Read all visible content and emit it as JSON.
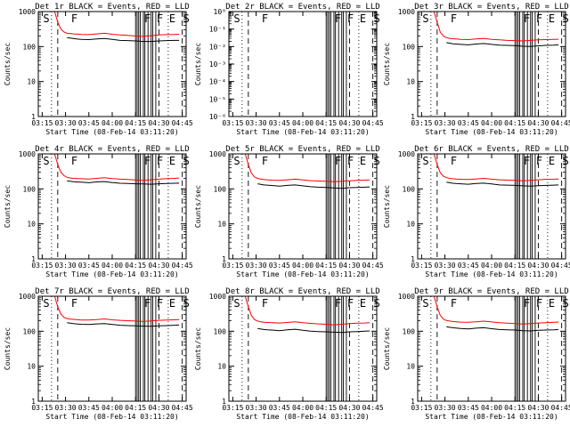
{
  "x_tick_labels": [
    "03:15",
    "03:30",
    "03:45",
    "04:00",
    "04:15",
    "04:30",
    "04:45"
  ],
  "x_tick_values_min": [
    0,
    15,
    30,
    45,
    60,
    75,
    90
  ],
  "xlim_min": [
    -2.5,
    92.5
  ],
  "xlabel": "Start Time (08-Feb-14 03:11:20)",
  "ylabel": "Counts/sec",
  "ylim": [
    1,
    1000
  ],
  "y_tick_labels": [
    "1",
    "10",
    "100",
    "1000"
  ],
  "panel2_ylim": [
    1e-06,
    1
  ],
  "panel2_y_tick_labels": [
    "10⁻⁶",
    "10⁻⁵",
    "10⁻⁴",
    "10⁻³",
    "10⁻²",
    "10⁻¹",
    "10⁰"
  ],
  "marker_labels": [
    {
      "text": "S",
      "x": 0
    },
    {
      "text": "F",
      "x": 18
    },
    {
      "text": "F",
      "x": 65
    },
    {
      "text": "F",
      "x": 73
    },
    {
      "text": "E",
      "x": 81
    },
    {
      "text": "S",
      "x": 90
    }
  ],
  "colors": {
    "events": "#000000",
    "lld": "#ff0000",
    "axes": "#000000"
  },
  "chart_data": [
    {
      "type": "line",
      "title": "Det 1r BLACK = Events, RED = LLD",
      "x": [
        8,
        10,
        12,
        14,
        16,
        18,
        20,
        22,
        25,
        30,
        35,
        40,
        45,
        50,
        55,
        60,
        65,
        70,
        75,
        80,
        85,
        88
      ],
      "series": [
        {
          "name": "LLD",
          "values": [
            1000,
            500,
            320,
            260,
            240,
            235,
            230,
            228,
            222,
            220,
            230,
            240,
            225,
            215,
            210,
            200,
            195,
            205,
            215,
            220,
            222,
            225
          ]
        },
        {
          "name": "Events",
          "values": [
            null,
            null,
            null,
            null,
            180,
            175,
            170,
            165,
            160,
            158,
            165,
            170,
            160,
            150,
            148,
            145,
            140,
            140,
            145,
            148,
            150,
            150
          ]
        }
      ],
      "ylim": [
        1,
        1000
      ]
    },
    {
      "type": "line",
      "title": "Det 2r BLACK = Events, RED = LLD",
      "x": [],
      "series": [],
      "ylim": [
        1e-06,
        1
      ]
    },
    {
      "type": "line",
      "title": "Det 3r BLACK = Events, RED = LLD",
      "x": [
        8,
        10,
        12,
        14,
        16,
        18,
        20,
        22,
        25,
        30,
        35,
        40,
        45,
        50,
        55,
        60,
        65,
        70,
        75,
        80,
        85,
        88
      ],
      "series": [
        {
          "name": "LLD",
          "values": [
            1000,
            500,
            260,
            200,
            180,
            172,
            168,
            165,
            160,
            158,
            165,
            170,
            160,
            155,
            150,
            148,
            145,
            150,
            155,
            158,
            160,
            162
          ]
        },
        {
          "name": "Events",
          "values": [
            null,
            null,
            null,
            null,
            130,
            125,
            120,
            118,
            115,
            112,
            118,
            122,
            115,
            110,
            108,
            106,
            102,
            100,
            105,
            108,
            110,
            112
          ]
        }
      ],
      "ylim": [
        1,
        1000
      ]
    },
    {
      "type": "line",
      "title": "Det 4r BLACK = Events, RED = LLD",
      "x": [
        8,
        10,
        12,
        14,
        16,
        18,
        20,
        22,
        25,
        30,
        35,
        40,
        45,
        50,
        55,
        60,
        65,
        70,
        75,
        80,
        85,
        88
      ],
      "series": [
        {
          "name": "LLD",
          "values": [
            1000,
            500,
            300,
            240,
            215,
            205,
            200,
            198,
            195,
            192,
            200,
            210,
            198,
            190,
            185,
            180,
            175,
            182,
            190,
            196,
            200,
            205
          ]
        },
        {
          "name": "Events",
          "values": [
            null,
            null,
            null,
            null,
            170,
            165,
            160,
            158,
            155,
            150,
            158,
            162,
            152,
            145,
            142,
            140,
            138,
            136,
            140,
            142,
            145,
            146
          ]
        }
      ],
      "ylim": [
        1,
        1000
      ]
    },
    {
      "type": "line",
      "title": "Det 5r BLACK = Events, RED = LLD",
      "x": [
        8,
        10,
        12,
        14,
        16,
        18,
        20,
        22,
        25,
        30,
        35,
        40,
        45,
        50,
        55,
        60,
        65,
        70,
        75,
        80,
        85,
        88
      ],
      "series": [
        {
          "name": "LLD",
          "values": [
            1000,
            500,
            280,
            220,
            200,
            190,
            185,
            182,
            178,
            175,
            182,
            190,
            180,
            172,
            168,
            165,
            160,
            165,
            170,
            175,
            178,
            180
          ]
        },
        {
          "name": "Events",
          "values": [
            null,
            null,
            null,
            null,
            140,
            135,
            130,
            128,
            125,
            120,
            126,
            130,
            122,
            115,
            112,
            110,
            106,
            104,
            108,
            110,
            112,
            114
          ]
        }
      ],
      "ylim": [
        1,
        1000
      ]
    },
    {
      "type": "line",
      "title": "Det 6r BLACK = Events, RED = LLD",
      "x": [
        8,
        10,
        12,
        14,
        16,
        18,
        20,
        22,
        25,
        30,
        35,
        40,
        45,
        50,
        55,
        60,
        65,
        70,
        75,
        80,
        85,
        88
      ],
      "series": [
        {
          "name": "LLD",
          "values": [
            1000,
            500,
            290,
            230,
            210,
            200,
            195,
            192,
            188,
            185,
            192,
            200,
            190,
            182,
            178,
            175,
            170,
            176,
            182,
            188,
            190,
            192
          ]
        },
        {
          "name": "Events",
          "values": [
            null,
            null,
            null,
            null,
            155,
            150,
            145,
            142,
            140,
            136,
            142,
            146,
            138,
            130,
            128,
            126,
            122,
            120,
            124,
            126,
            128,
            130
          ]
        }
      ],
      "ylim": [
        1,
        1000
      ]
    },
    {
      "type": "line",
      "title": "Det 7r BLACK = Events, RED = LLD",
      "x": [
        8,
        10,
        12,
        14,
        16,
        18,
        20,
        22,
        25,
        30,
        35,
        40,
        45,
        50,
        55,
        60,
        65,
        70,
        75,
        80,
        85,
        88
      ],
      "series": [
        {
          "name": "LLD",
          "values": [
            1000,
            500,
            310,
            250,
            230,
            222,
            218,
            215,
            210,
            208,
            215,
            225,
            212,
            205,
            200,
            195,
            190,
            198,
            205,
            210,
            212,
            215
          ]
        },
        {
          "name": "Events",
          "values": [
            null,
            null,
            null,
            null,
            175,
            170,
            165,
            162,
            158,
            155,
            162,
            166,
            156,
            148,
            145,
            142,
            140,
            138,
            142,
            145,
            148,
            150
          ]
        }
      ],
      "ylim": [
        1,
        1000
      ]
    },
    {
      "type": "line",
      "title": "Det 8r BLACK = Events, RED = LLD",
      "x": [
        8,
        10,
        12,
        14,
        16,
        18,
        20,
        22,
        25,
        30,
        35,
        40,
        45,
        50,
        55,
        60,
        65,
        70,
        75,
        80,
        85,
        88
      ],
      "series": [
        {
          "name": "LLD",
          "values": [
            1000,
            500,
            280,
            215,
            195,
            185,
            180,
            178,
            175,
            172,
            178,
            185,
            175,
            168,
            162,
            158,
            152,
            158,
            165,
            170,
            172,
            175
          ]
        },
        {
          "name": "Events",
          "values": [
            null,
            null,
            null,
            null,
            120,
            115,
            112,
            110,
            108,
            104,
            110,
            114,
            106,
            100,
            98,
            96,
            94,
            92,
            96,
            98,
            100,
            102
          ]
        }
      ],
      "ylim": [
        1,
        1000
      ]
    },
    {
      "type": "line",
      "title": "Det 9r BLACK = Events, RED = LLD",
      "x": [
        8,
        10,
        12,
        14,
        16,
        18,
        20,
        22,
        25,
        30,
        35,
        40,
        45,
        50,
        55,
        60,
        65,
        70,
        75,
        80,
        85,
        88
      ],
      "series": [
        {
          "name": "LLD",
          "values": [
            1000,
            500,
            285,
            222,
            202,
            195,
            190,
            186,
            182,
            180,
            186,
            194,
            184,
            176,
            170,
            166,
            160,
            166,
            172,
            176,
            180,
            182
          ]
        },
        {
          "name": "Events",
          "values": [
            null,
            null,
            null,
            null,
            135,
            130,
            126,
            124,
            120,
            116,
            122,
            126,
            118,
            112,
            110,
            108,
            104,
            102,
            106,
            108,
            110,
            112
          ]
        }
      ],
      "ylim": [
        1,
        1000
      ]
    }
  ]
}
